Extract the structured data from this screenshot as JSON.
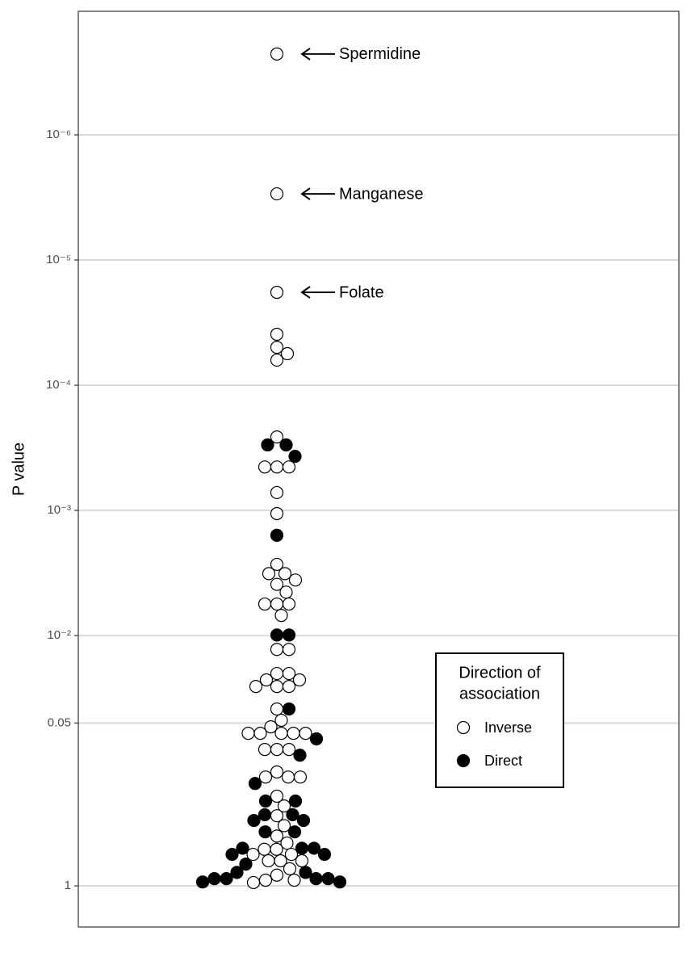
{
  "chart_data": {
    "type": "beeswarm",
    "y_label": "P value",
    "y_scale": "log",
    "ylim": [
      2.13,
      1.03e-07
    ],
    "yticks": [
      {
        "value": 1e-06,
        "label": "10⁻⁶"
      },
      {
        "value": 1e-05,
        "label": "10⁻⁵"
      },
      {
        "value": 0.0001,
        "label": "10⁻⁴"
      },
      {
        "value": 0.001,
        "label": "10⁻³"
      },
      {
        "value": 0.01,
        "label": "10⁻²"
      },
      0.05,
      1
    ],
    "grid": true,
    "legend_title": [
      "Direction of",
      "association"
    ],
    "legend_position": "right",
    "annotations": [
      "Spermidine",
      "Manganese",
      "Folate"
    ],
    "series": [
      {
        "name": "Inverse",
        "color": "#ffffff",
        "values": [
          2.26e-07,
          2.96e-06,
          1.81e-05,
          3.92e-05,
          4.98e-05,
          5.6e-05,
          6.3e-05,
          0.000259,
          0.00045,
          0.00045,
          0.00045,
          0.00072,
          0.00106,
          0.0027,
          0.0032,
          0.0032,
          0.0036,
          0.0039,
          0.0045,
          0.0056,
          0.0056,
          0.0056,
          0.0069,
          0.0129,
          0.0129,
          0.0201,
          0.0201,
          0.0226,
          0.0226,
          0.0255,
          0.0255,
          0.0255,
          0.0386,
          0.0475,
          0.0536,
          0.0604,
          0.0604,
          0.0604,
          0.0604,
          0.0604,
          0.0813,
          0.0813,
          0.0813,
          0.123,
          0.135,
          0.135,
          0.135,
          0.192,
          0.23,
          0.275,
          0.33,
          0.4,
          0.455,
          0.51,
          0.51,
          0.56,
          0.56,
          0.63,
          0.63,
          0.63,
          0.73,
          0.82,
          0.9,
          0.9,
          0.94
        ]
      },
      {
        "name": "Direct",
        "color": "#000000",
        "values": [
          0.0003,
          0.0003,
          0.00037,
          0.00158,
          0.0099,
          0.0099,
          0.0386,
          0.0669,
          0.0903,
          0.152,
          0.21,
          0.21,
          0.27,
          0.27,
          0.3,
          0.3,
          0.37,
          0.37,
          0.5,
          0.5,
          0.5,
          0.56,
          0.56,
          0.67,
          0.78,
          0.78,
          0.875,
          0.875,
          0.875,
          0.875,
          0.93,
          0.93
        ]
      }
    ]
  }
}
